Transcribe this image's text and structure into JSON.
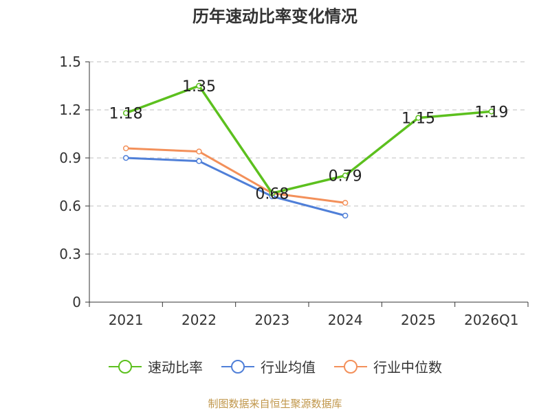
{
  "chart_data": {
    "type": "line",
    "title": "历年速动比率变化情况",
    "categories": [
      "2021",
      "2022",
      "2023",
      "2024",
      "2025",
      "2026Q1"
    ],
    "y_ticks": [
      "0",
      "0.3",
      "0.6",
      "0.9",
      "1.2",
      "1.5"
    ],
    "ylim": [
      0,
      1.5
    ],
    "grid": true,
    "legend_position": "bottom",
    "series": [
      {
        "name": "速动比率",
        "color": "#5cc01e",
        "values": [
          1.18,
          1.35,
          0.68,
          0.79,
          1.15,
          1.19
        ],
        "labels": [
          "1.18",
          "1.35",
          "0.68",
          "0.79",
          "1.15",
          "1.19"
        ]
      },
      {
        "name": "行业均值",
        "color": "#4f7fd8",
        "values": [
          0.9,
          0.88,
          0.66,
          0.54,
          null,
          null
        ]
      },
      {
        "name": "行业中位数",
        "color": "#f3905a",
        "values": [
          0.96,
          0.94,
          0.68,
          0.62,
          null,
          null
        ]
      }
    ]
  },
  "source": "制图数据来自恒生聚源数据库"
}
